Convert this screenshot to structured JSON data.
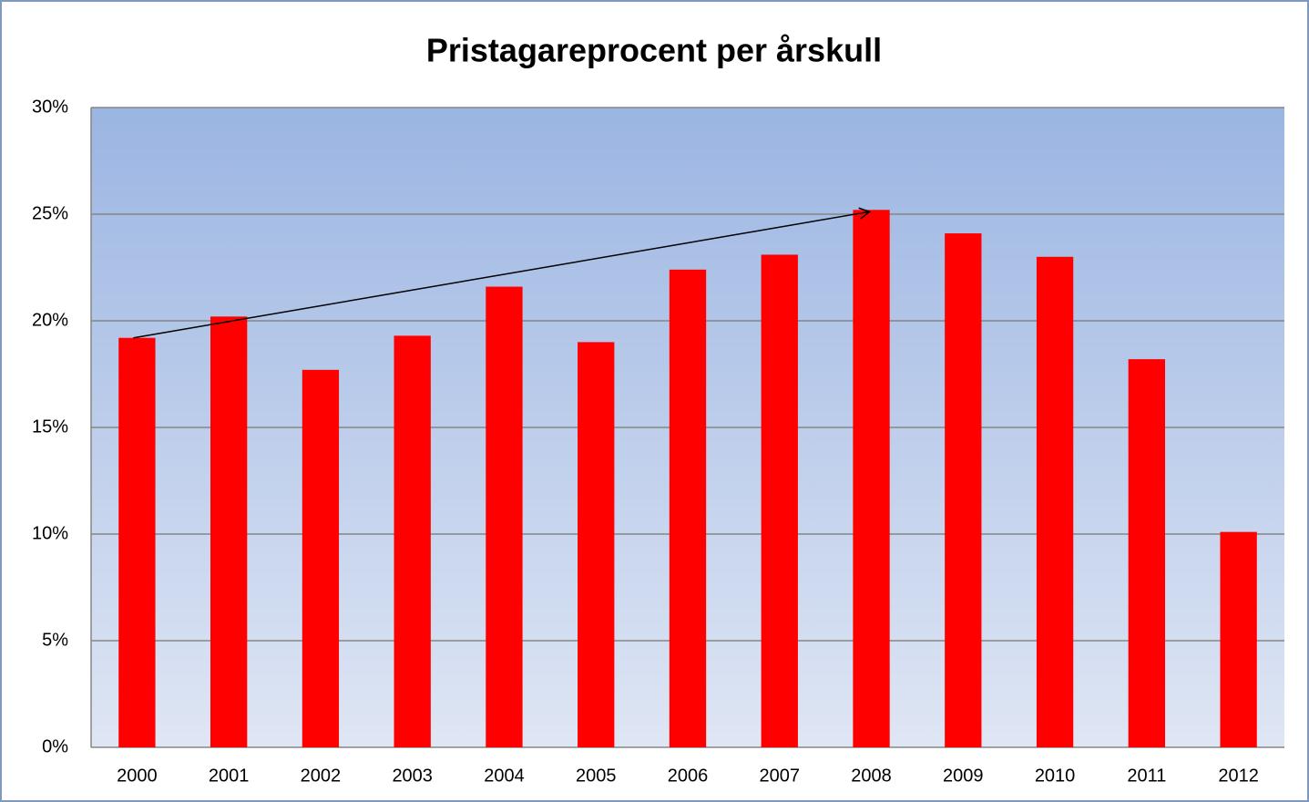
{
  "chart_data": {
    "type": "bar",
    "title": "Pristagareprocent per årskull",
    "categories": [
      "2000",
      "2001",
      "2002",
      "2003",
      "2004",
      "2005",
      "2006",
      "2007",
      "2008",
      "2009",
      "2010",
      "2011",
      "2012"
    ],
    "values": [
      19.2,
      20.2,
      17.7,
      19.3,
      21.6,
      19.0,
      22.4,
      23.1,
      25.2,
      24.1,
      23.0,
      18.2,
      10.1
    ],
    "color": "#ff0000",
    "ylim": [
      0,
      30
    ],
    "yticks": [
      {
        "value": 0,
        "label": "0%"
      },
      {
        "value": 5,
        "label": "5%"
      },
      {
        "value": 10,
        "label": "10%"
      },
      {
        "value": 15,
        "label": "15%"
      },
      {
        "value": 20,
        "label": "20%"
      },
      {
        "value": 25,
        "label": "25%"
      },
      {
        "value": 30,
        "label": "30%"
      }
    ],
    "grid": true
  }
}
